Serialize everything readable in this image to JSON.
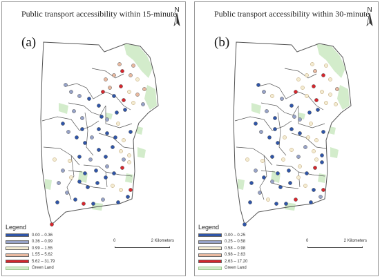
{
  "panels": [
    {
      "title": "Public transport accessibility within 15-minute",
      "label": "(a)",
      "legend_title": "Legend",
      "classes": [
        {
          "text": "0.00 – 0.36",
          "color": "#2f55a8"
        },
        {
          "text": "0.36 – 0.99",
          "color": "#97a3c8"
        },
        {
          "text": "0.99 – 1.55",
          "color": "#f4ecd2"
        },
        {
          "text": "1.55 – 5.62",
          "color": "#e9b9a0"
        },
        {
          "text": "5.62 – 31.79",
          "color": "#d6262d"
        }
      ],
      "green_land_label": "Green Land",
      "scale_zero": "0",
      "scale_distance": "2 Kilometers"
    },
    {
      "title": "Public transport accessibility within 30-minute",
      "label": "(b)",
      "legend_title": "Legend",
      "classes": [
        {
          "text": "0.00 – 0.25",
          "color": "#2f55a8"
        },
        {
          "text": "0.25 – 0.58",
          "color": "#97a3c8"
        },
        {
          "text": "0.58 – 0.98",
          "color": "#f4ecd2"
        },
        {
          "text": "0.98 – 2.63",
          "color": "#e9b9a0"
        },
        {
          "text": "2.63 – 17.20",
          "color": "#d6262d"
        }
      ],
      "green_land_label": "Green Land",
      "scale_zero": "0",
      "scale_distance": "2 Kilometers"
    }
  ],
  "north_letter": "N",
  "colors": {
    "green_land": "#d3eccb",
    "boundary": "#555555"
  },
  "icons": {
    "north": "north-arrow-icon"
  }
}
